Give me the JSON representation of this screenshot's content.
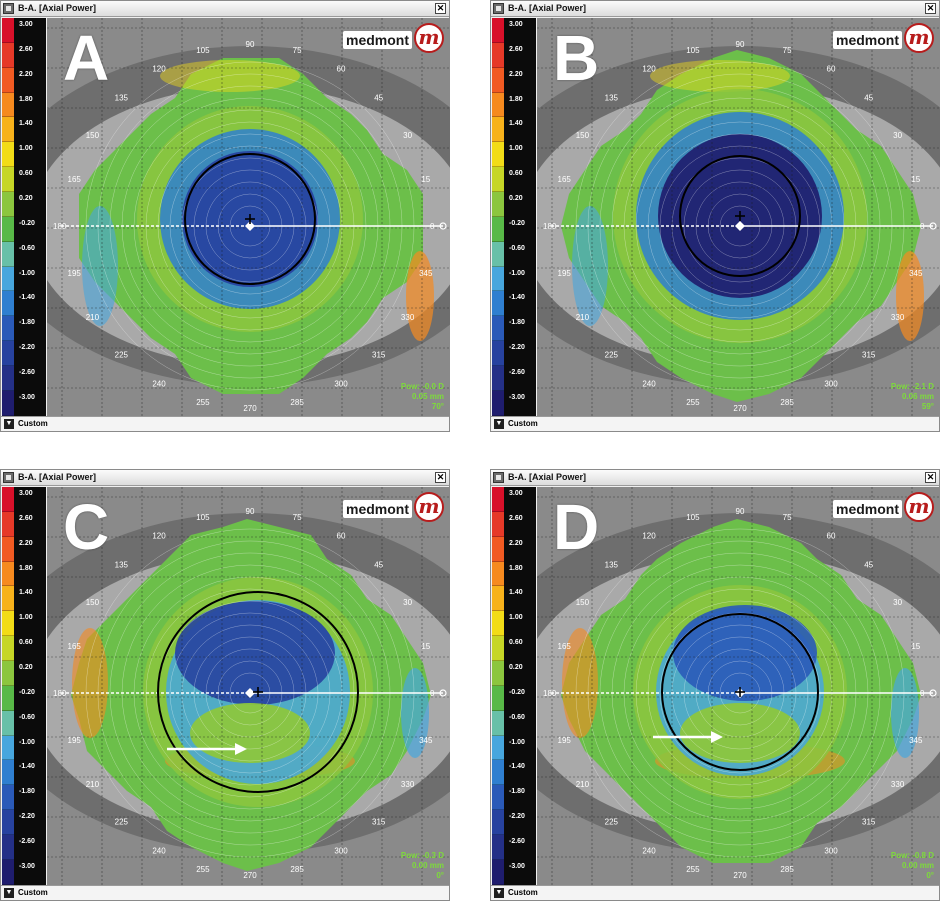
{
  "window_title": "B-A. [Axial Power]",
  "logo_text": "medmont",
  "logo_mark": "m",
  "footer_label": "Custom",
  "scale_labels": [
    "3.00",
    "2.60",
    "2.20",
    "1.80",
    "1.40",
    "1.00",
    "0.60",
    "0.20",
    "-0.20",
    "-0.60",
    "-1.00",
    "-1.40",
    "-1.80",
    "-2.20",
    "-2.60",
    "-3.00"
  ],
  "scale_colors": [
    "#d8102a",
    "#e63928",
    "#f15a22",
    "#f68a1f",
    "#f7b21b",
    "#f2dc17",
    "#c6d626",
    "#8cc63e",
    "#58b947",
    "#68c0a8",
    "#47a6dd",
    "#2f7fd0",
    "#2a5ab8",
    "#27429f",
    "#243087",
    "#1f1d6e"
  ],
  "angle_labels": [
    "0",
    "15",
    "30",
    "45",
    "60",
    "75",
    "90",
    "105",
    "120",
    "135",
    "150",
    "165",
    "180",
    "195",
    "210",
    "225",
    "240",
    "255",
    "270",
    "285",
    "300",
    "315",
    "330",
    "345"
  ],
  "panels": [
    {
      "letter": "A",
      "pow": "Pow: -0.0 D",
      "dist": "0.05 mm",
      "angle": "70°"
    },
    {
      "letter": "B",
      "pow": "Pow: -2.1 D",
      "dist": "0.06 mm",
      "angle": "59°"
    },
    {
      "letter": "C",
      "pow": "Pow: -0.3 D",
      "dist": "0.00 mm",
      "angle": "0°"
    },
    {
      "letter": "D",
      "pow": "Pow: -0.8 D",
      "dist": "0.00 mm",
      "angle": "0°"
    }
  ]
}
